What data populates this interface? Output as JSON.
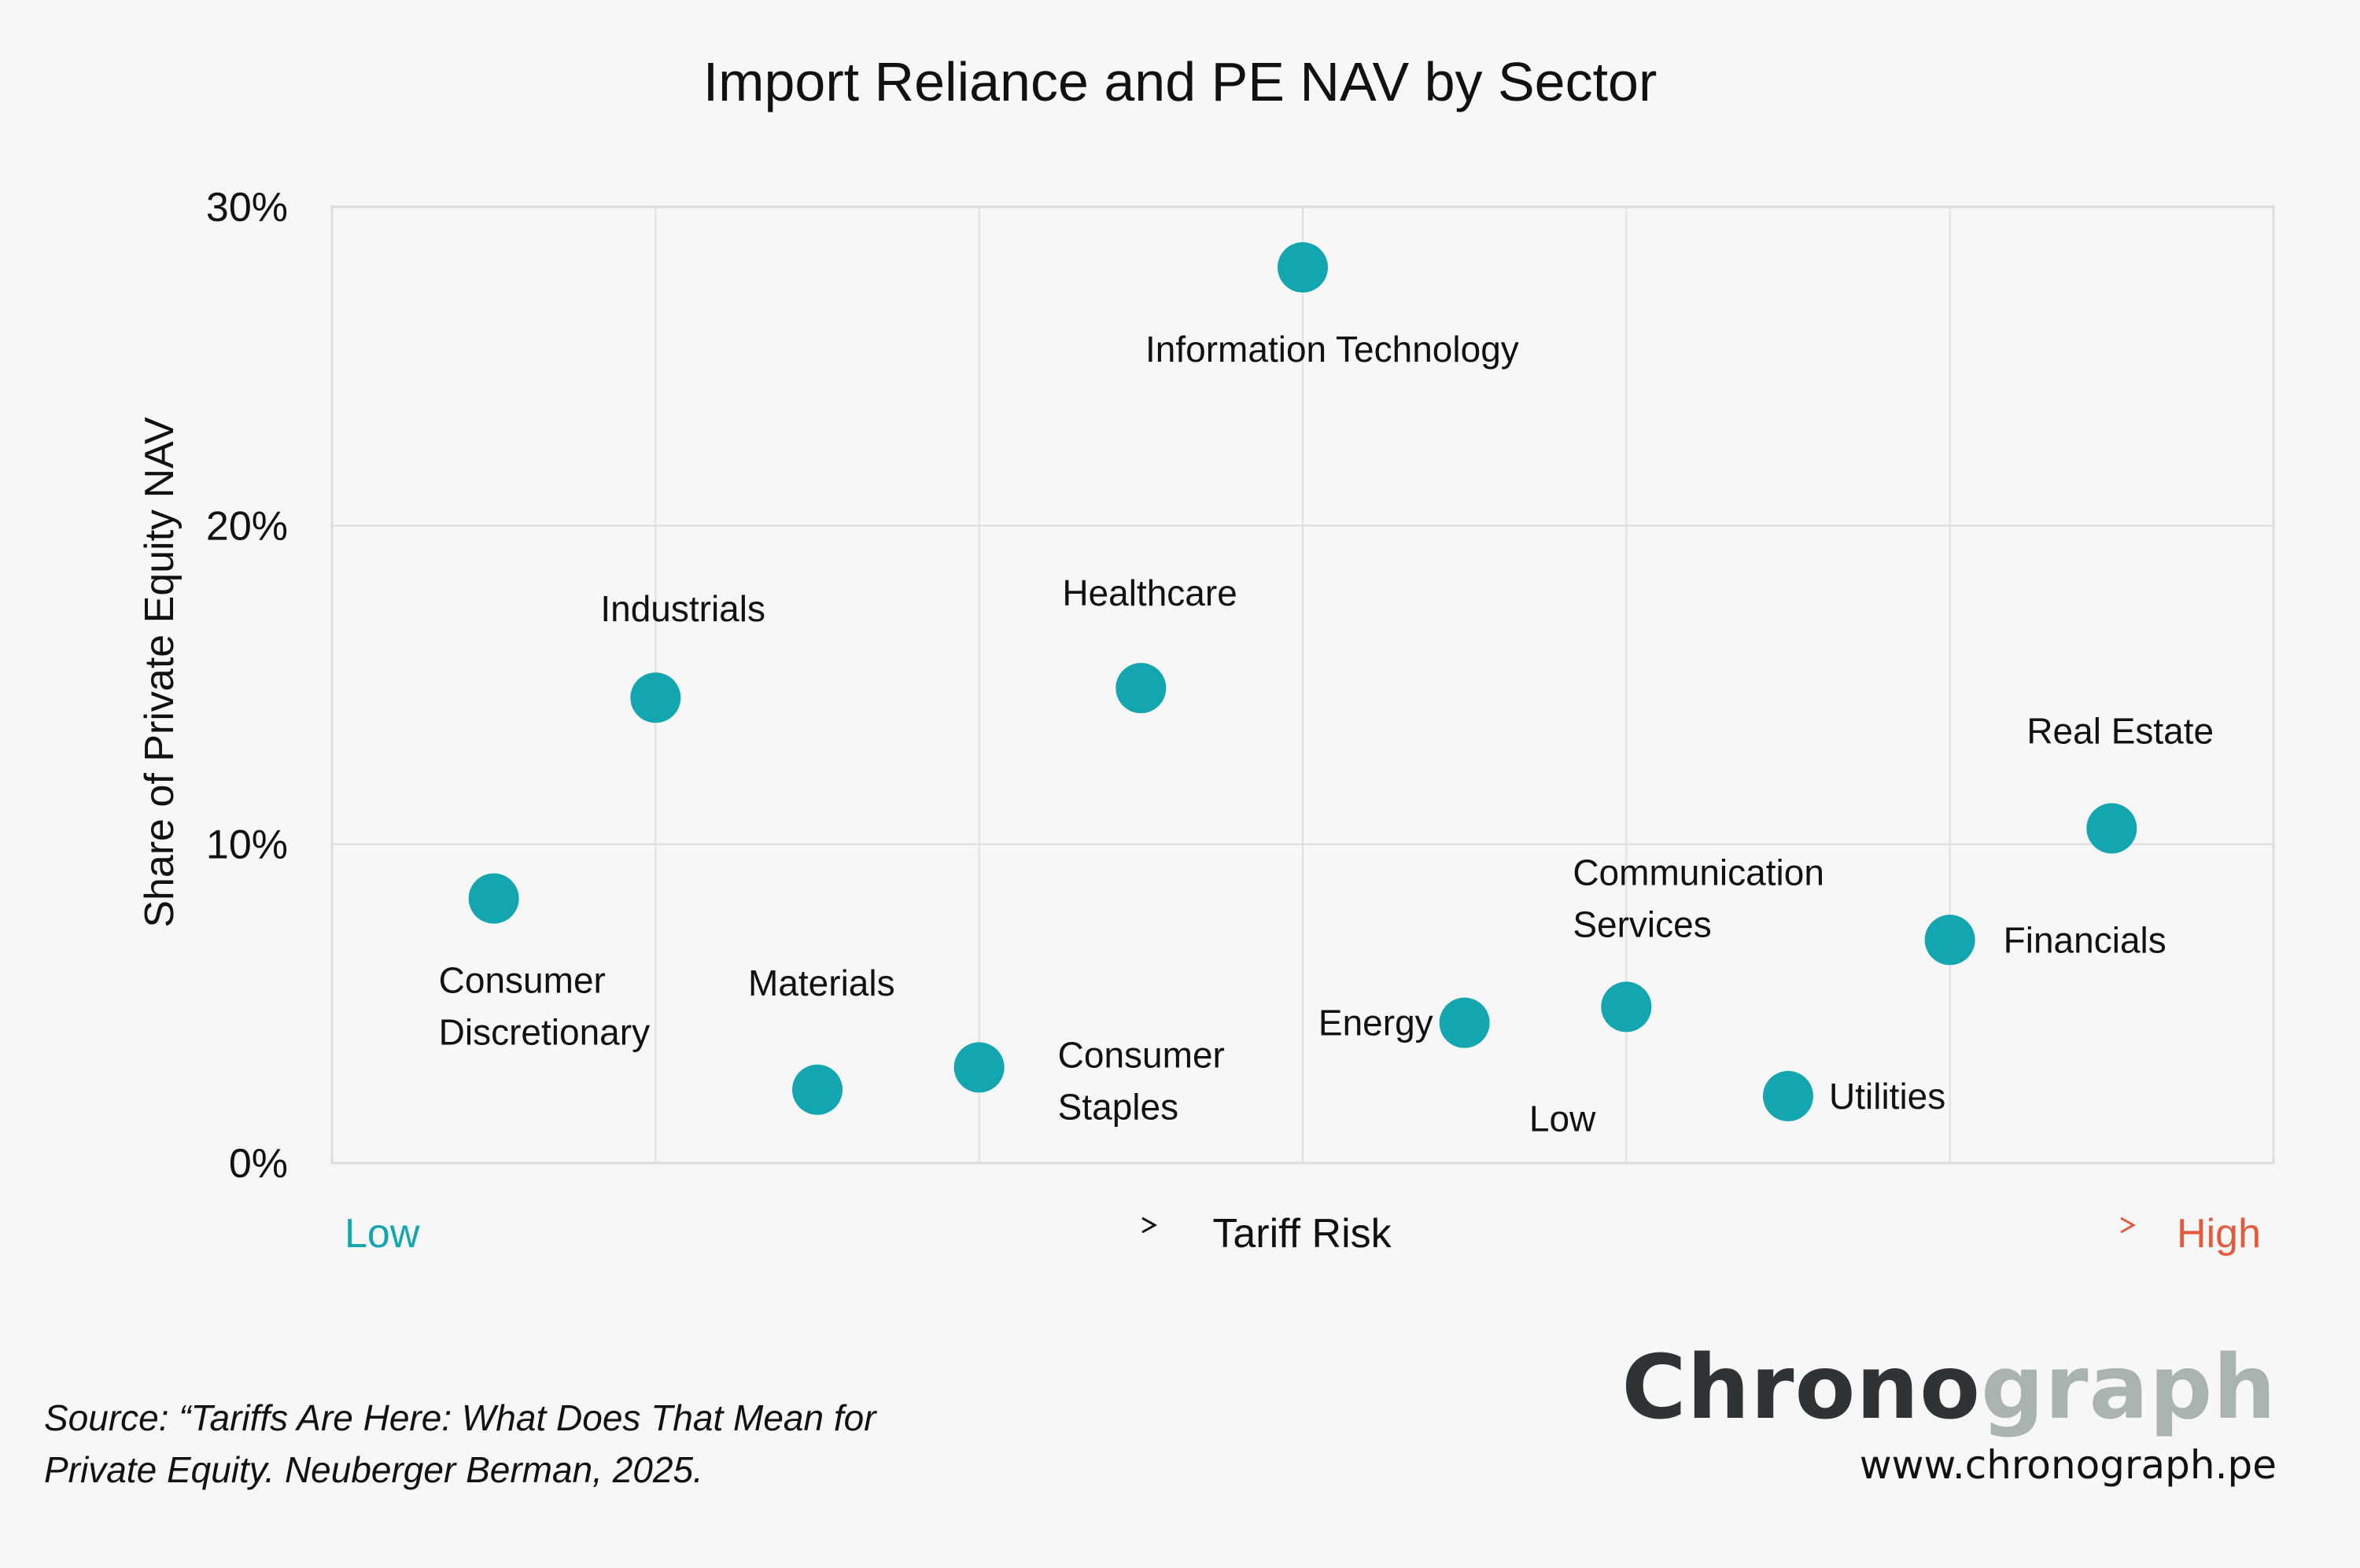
{
  "chart_data": {
    "type": "scatter",
    "title": "Import Reliance and PE NAV by Sector",
    "xlabel": "Tariff Risk",
    "x_low_label": "Low",
    "x_high_label": "High",
    "ylabel": "Share of Private Equity NAV",
    "ylim": [
      0,
      30
    ],
    "xlim": [
      0,
      12
    ],
    "yticks": [
      0,
      10,
      20,
      30
    ],
    "ytick_labels": [
      "0%",
      "10%",
      "20%",
      "30%"
    ],
    "grid": true,
    "x_is_ordinal": true,
    "point_color": "#14a6b0",
    "low_color": "#14a6b0",
    "high_color": "#e45a3c",
    "points": [
      {
        "name": "Consumer Discretionary",
        "label_lines": [
          "Consumer",
          "Discretionary"
        ],
        "x": 1,
        "y": 8.3
      },
      {
        "name": "Industrials",
        "label_lines": [
          "Industrials"
        ],
        "x": 2,
        "y": 14.6
      },
      {
        "name": "Materials",
        "label_lines": [
          "Materials"
        ],
        "x": 3,
        "y": 2.3
      },
      {
        "name": "Consumer Staples",
        "label_lines": [
          "Consumer",
          "Staples"
        ],
        "x": 4,
        "y": 3.0
      },
      {
        "name": "Healthcare",
        "label_lines": [
          "Healthcare"
        ],
        "x": 5,
        "y": 14.9
      },
      {
        "name": "Information Technology",
        "label_lines": [
          "Information Technology"
        ],
        "x": 6,
        "y": 28.1
      },
      {
        "name": "Energy",
        "label_lines": [
          "Energy"
        ],
        "x": 7,
        "y": 4.4
      },
      {
        "name": "Communication Services",
        "label_lines": [
          "Communication",
          "Services"
        ],
        "x": 8,
        "y": 4.9
      },
      {
        "name": "Utilities",
        "label_lines": [
          "Utilities"
        ],
        "x": 9,
        "y": 2.1
      },
      {
        "name": "Financials",
        "label_lines": [
          "Financials"
        ],
        "x": 10,
        "y": 7.0
      },
      {
        "name": "Real Estate",
        "label_lines": [
          "Real Estate"
        ],
        "x": 11,
        "y": 10.5
      }
    ],
    "annotations": [
      {
        "text": "Low",
        "x": 7.4,
        "y": 1.4
      }
    ]
  },
  "footer": {
    "source_line1": "Source: “Tariffs Are Here: What Does That Mean for",
    "source_line2": "Private Equity. Neuberger Berman, 2025."
  },
  "brand": {
    "logo_dark": "Chrono",
    "logo_light": "graph",
    "url": "www.chronograph.pe"
  }
}
